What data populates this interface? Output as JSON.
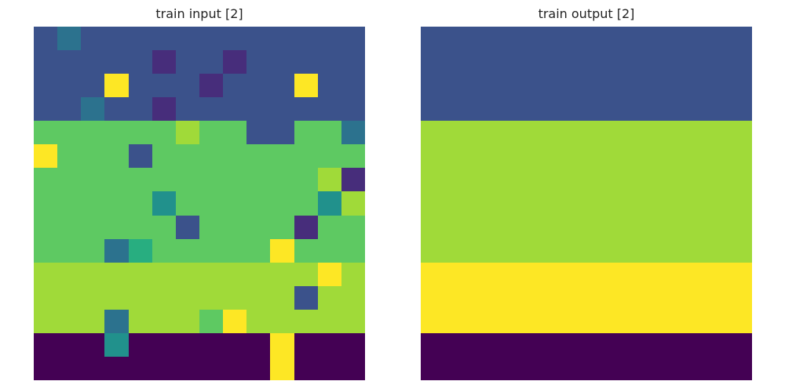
{
  "palette": {
    "0": "#440154",
    "1": "#472D7B",
    "2": "#3B528B",
    "3": "#2C728E",
    "4": "#21918C",
    "5": "#28AE80",
    "6": "#5EC962",
    "7": "#A0DA39",
    "8": "#FDE725"
  },
  "panels": [
    {
      "title": "train input [2]",
      "grid": [
        [
          2,
          3,
          2,
          2,
          2,
          2,
          2,
          2,
          2,
          2,
          2,
          2,
          2,
          2
        ],
        [
          2,
          2,
          2,
          2,
          2,
          1,
          2,
          2,
          1,
          2,
          2,
          2,
          2,
          2
        ],
        [
          2,
          2,
          2,
          8,
          2,
          2,
          2,
          1,
          2,
          2,
          2,
          8,
          2,
          2
        ],
        [
          2,
          2,
          3,
          2,
          2,
          1,
          2,
          2,
          2,
          2,
          2,
          2,
          2,
          2
        ],
        [
          6,
          6,
          6,
          6,
          6,
          6,
          7,
          6,
          6,
          2,
          2,
          6,
          6,
          3
        ],
        [
          8,
          6,
          6,
          6,
          2,
          6,
          6,
          6,
          6,
          6,
          6,
          6,
          6,
          6
        ],
        [
          6,
          6,
          6,
          6,
          6,
          6,
          6,
          6,
          6,
          6,
          6,
          6,
          7,
          1
        ],
        [
          6,
          6,
          6,
          6,
          6,
          4,
          6,
          6,
          6,
          6,
          6,
          6,
          4,
          7
        ],
        [
          6,
          6,
          6,
          6,
          6,
          6,
          2,
          6,
          6,
          6,
          6,
          1,
          6,
          6
        ],
        [
          6,
          6,
          6,
          3,
          5,
          6,
          6,
          6,
          6,
          6,
          8,
          6,
          6,
          6
        ],
        [
          7,
          7,
          7,
          7,
          7,
          7,
          7,
          7,
          7,
          7,
          7,
          7,
          8,
          7
        ],
        [
          7,
          7,
          7,
          7,
          7,
          7,
          7,
          7,
          7,
          7,
          7,
          2,
          7,
          7
        ],
        [
          7,
          7,
          7,
          3,
          7,
          7,
          7,
          6,
          8,
          7,
          7,
          7,
          7,
          7
        ],
        [
          0,
          0,
          0,
          4,
          0,
          0,
          0,
          0,
          0,
          0,
          8,
          0,
          0,
          0
        ],
        [
          0,
          0,
          0,
          0,
          0,
          0,
          0,
          0,
          0,
          0,
          8,
          0,
          0,
          0
        ]
      ]
    },
    {
      "title": "train output [2]",
      "grid": [
        [
          2,
          2,
          2,
          2,
          2,
          2,
          2,
          2,
          2,
          2,
          2,
          2,
          2,
          2
        ],
        [
          2,
          2,
          2,
          2,
          2,
          2,
          2,
          2,
          2,
          2,
          2,
          2,
          2,
          2
        ],
        [
          2,
          2,
          2,
          2,
          2,
          2,
          2,
          2,
          2,
          2,
          2,
          2,
          2,
          2
        ],
        [
          2,
          2,
          2,
          2,
          2,
          2,
          2,
          2,
          2,
          2,
          2,
          2,
          2,
          2
        ],
        [
          7,
          7,
          7,
          7,
          7,
          7,
          7,
          7,
          7,
          7,
          7,
          7,
          7,
          7
        ],
        [
          7,
          7,
          7,
          7,
          7,
          7,
          7,
          7,
          7,
          7,
          7,
          7,
          7,
          7
        ],
        [
          7,
          7,
          7,
          7,
          7,
          7,
          7,
          7,
          7,
          7,
          7,
          7,
          7,
          7
        ],
        [
          7,
          7,
          7,
          7,
          7,
          7,
          7,
          7,
          7,
          7,
          7,
          7,
          7,
          7
        ],
        [
          7,
          7,
          7,
          7,
          7,
          7,
          7,
          7,
          7,
          7,
          7,
          7,
          7,
          7
        ],
        [
          7,
          7,
          7,
          7,
          7,
          7,
          7,
          7,
          7,
          7,
          7,
          7,
          7,
          7
        ],
        [
          8,
          8,
          8,
          8,
          8,
          8,
          8,
          8,
          8,
          8,
          8,
          8,
          8,
          8
        ],
        [
          8,
          8,
          8,
          8,
          8,
          8,
          8,
          8,
          8,
          8,
          8,
          8,
          8,
          8
        ],
        [
          8,
          8,
          8,
          8,
          8,
          8,
          8,
          8,
          8,
          8,
          8,
          8,
          8,
          8
        ],
        [
          0,
          0,
          0,
          0,
          0,
          0,
          0,
          0,
          0,
          0,
          0,
          0,
          0,
          0
        ],
        [
          0,
          0,
          0,
          0,
          0,
          0,
          0,
          0,
          0,
          0,
          0,
          0,
          0,
          0
        ]
      ]
    }
  ]
}
